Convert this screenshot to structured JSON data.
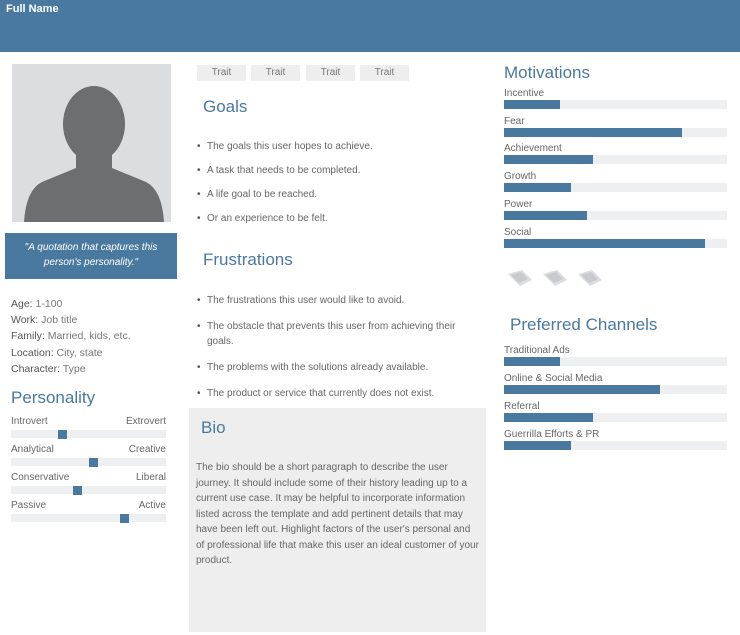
{
  "header": {
    "name": "Full Name"
  },
  "quote": "\"A quotation that captures this person's personality.\"",
  "demographics": [
    {
      "label": "Age:",
      "value": "1-100"
    },
    {
      "label": "Work:",
      "value": "Job title"
    },
    {
      "label": "Family:",
      "value": "Married, kids, etc."
    },
    {
      "label": "Location:",
      "value": "City, state"
    },
    {
      "label": "Character:",
      "value": "Type"
    }
  ],
  "personality": {
    "title": "Personality",
    "sliders": [
      {
        "left": "Introvert",
        "right": "Extrovert",
        "value": 0.33
      },
      {
        "left": "Analytical",
        "right": "Creative",
        "value": 0.53
      },
      {
        "left": "Conservative",
        "right": "Liberal",
        "value": 0.43
      },
      {
        "left": "Passive",
        "right": "Active",
        "value": 0.73
      }
    ]
  },
  "traits": [
    "Trait",
    "Trait",
    "Trait",
    "Trait"
  ],
  "goals": {
    "title": "Goals",
    "items": [
      "The goals this user hopes to achieve.",
      "A task that needs to be completed.",
      "A life goal to be reached.",
      "Or an experience to be felt."
    ]
  },
  "frustrations": {
    "title": "Frustrations",
    "items": [
      "The frustrations this user would like to avoid.",
      "The obstacle that prevents this user from achieving their goals.",
      "The problems with the solutions already available.",
      "The product or service that currently does not exist."
    ]
  },
  "bio": {
    "title": "Bio",
    "text": "The bio should be a short paragraph to describe the user journey. It should include some of their history leading up to a current use case. It may be helpful to incorporate information listed across the template and add pertinent details that may have been left out. Highlight factors of the user's personal and of professional life that make this user an ideal customer of your product."
  },
  "motivations": {
    "title": "Motivations",
    "items": [
      {
        "label": "Incentive",
        "value": 0.25
      },
      {
        "label": "Fear",
        "value": 0.8
      },
      {
        "label": "Achievement",
        "value": 0.4
      },
      {
        "label": "Growth",
        "value": 0.3
      },
      {
        "label": "Power",
        "value": 0.37
      },
      {
        "label": "Social",
        "value": 0.9
      }
    ]
  },
  "brands": [
    "brand-logo-1",
    "brand-logo-2",
    "brand-logo-3"
  ],
  "channels": {
    "title": "Preferred Channels",
    "items": [
      {
        "label": "Traditional Ads",
        "value": 0.25
      },
      {
        "label": "Online & Social Media",
        "value": 0.7
      },
      {
        "label": "Referral",
        "value": 0.4
      },
      {
        "label": "Guerrilla Efforts & PR",
        "value": 0.3
      }
    ]
  },
  "colors": {
    "accent": "#4a79a0",
    "track": "#eeeff1",
    "panel": "#eeeeee"
  }
}
